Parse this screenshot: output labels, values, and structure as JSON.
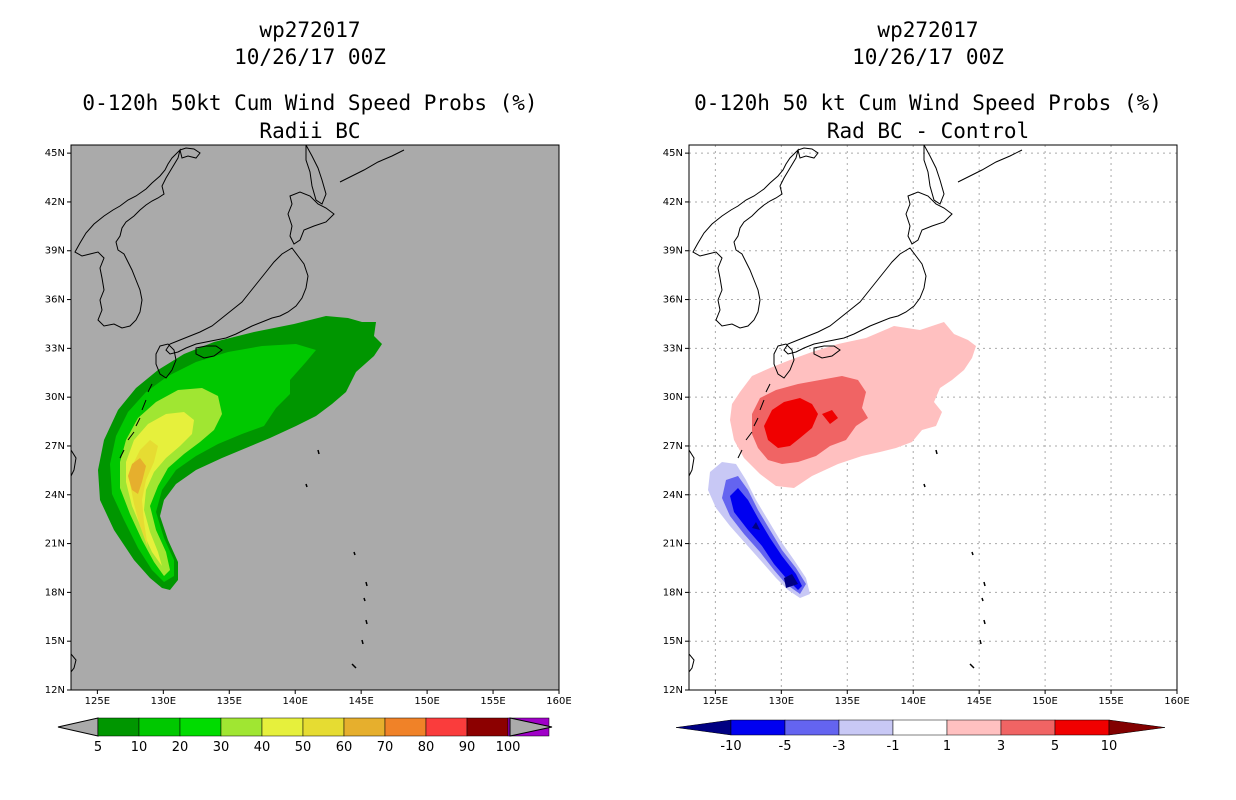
{
  "left_panel": {
    "title_line1": "wp272017",
    "title_line2": "10/26/17 00Z",
    "title_line3": "0-120h 50kt Cum Wind Speed Probs (%)",
    "title_line4": "Radii BC",
    "colorbar": {
      "labels": [
        "5",
        "10",
        "20",
        "30",
        "40",
        "50",
        "60",
        "70",
        "80",
        "90",
        "100"
      ],
      "colors": [
        "#009600",
        "#00c800",
        "#00dc00",
        "#a0e632",
        "#e6f03c",
        "#e6dc32",
        "#e6af2d",
        "#f08228",
        "#fa3c3c",
        "#8c0000",
        "#a000c8"
      ]
    }
  },
  "right_panel": {
    "title_line1": "wp272017",
    "title_line2": "10/26/17 00Z",
    "title_line3": "0-120h 50 kt Cum Wind Speed Probs (%)",
    "title_line4": "Rad BC - Control",
    "colorbar": {
      "labels": [
        "-10",
        "-5",
        "-3",
        "-1",
        "1",
        "3",
        "5",
        "10"
      ],
      "colors": [
        "#000082",
        "#0000f0",
        "#6464f0",
        "#c8c8f5",
        "#ffffff",
        "#ffc0c0",
        "#f06464",
        "#f00000",
        "#820000"
      ]
    }
  },
  "axes": {
    "lon_labels": [
      "125E",
      "130E",
      "135E",
      "140E",
      "145E",
      "150E",
      "155E",
      "160E"
    ],
    "lat_labels": [
      "12N",
      "15N",
      "18N",
      "21N",
      "24N",
      "27N",
      "30N",
      "33N",
      "36N",
      "39N",
      "42N",
      "45N"
    ],
    "lon_range": [
      123,
      160
    ],
    "lat_range": [
      12,
      45.5
    ]
  },
  "colors": {
    "map_background_left": "#aaaaaa",
    "map_background_right": "#ffffff",
    "coast": "#000000",
    "grid": "#aaaaaa"
  }
}
